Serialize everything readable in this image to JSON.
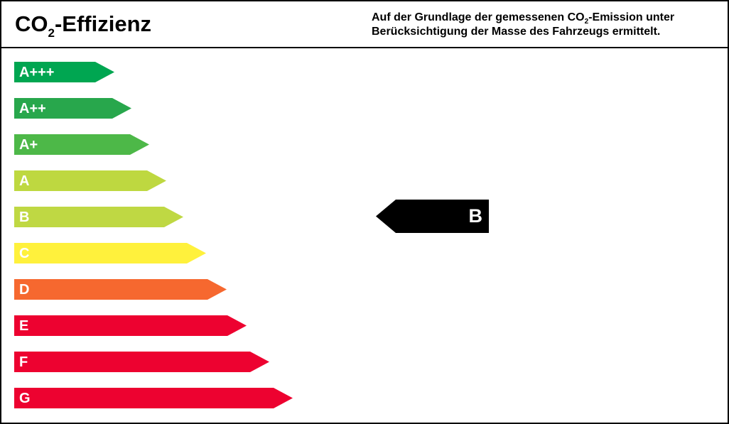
{
  "header": {
    "title_prefix": "CO",
    "title_sub": "2",
    "title_suffix": "-Effizienz",
    "desc_line1_prefix": "Auf der Grundlage der gemessenen CO",
    "desc_line1_sub": "2",
    "desc_line1_suffix": "-Emission unter",
    "desc_line2": "Berücksichtigung der Masse des Fahrzeugs ermittelt."
  },
  "classes": [
    {
      "label": "A+++",
      "color": "#00a651"
    },
    {
      "label": "A++",
      "color": "#28a74c"
    },
    {
      "label": "A+",
      "color": "#4db848"
    },
    {
      "label": "A",
      "color": "#bed840"
    },
    {
      "label": "B",
      "color": "#bfd843"
    },
    {
      "label": "C",
      "color": "#fff13c"
    },
    {
      "label": "D",
      "color": "#f6682f"
    },
    {
      "label": "E",
      "color": "#ed0230"
    },
    {
      "label": "F",
      "color": "#ed0230"
    },
    {
      "label": "G",
      "color": "#ed0230"
    }
  ],
  "rating": {
    "label": "B",
    "color": "#000000"
  }
}
